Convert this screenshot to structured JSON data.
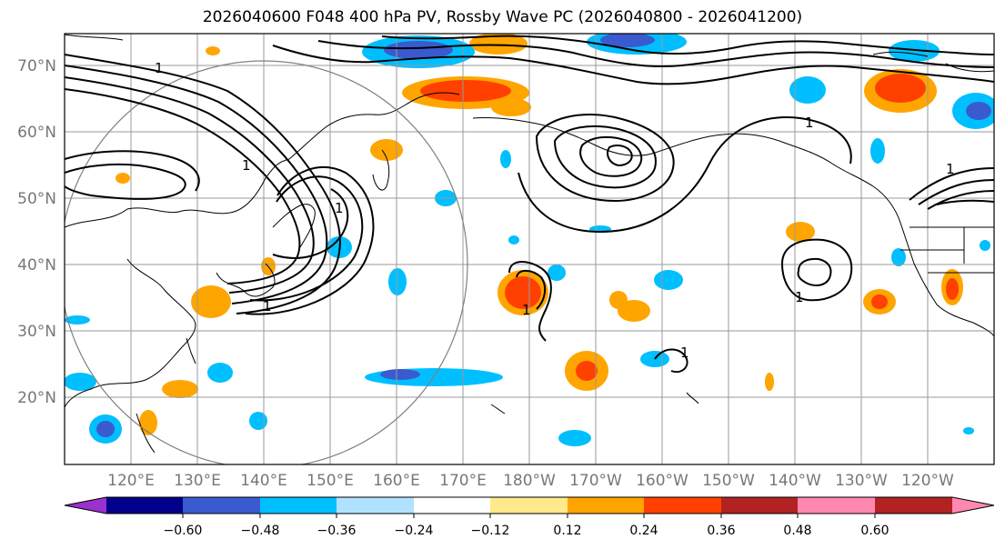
{
  "title": "2026040600 F048 400 hPa PV, Rossby Wave PC (2026040800 - 2026041200)",
  "map": {
    "lat_labels": [
      "70°N",
      "60°N",
      "50°N",
      "40°N",
      "30°N",
      "20°N"
    ],
    "lon_labels": [
      "120°E",
      "130°E",
      "140°E",
      "150°E",
      "160°E",
      "170°E",
      "180°W",
      "170°W",
      "160°W",
      "150°W",
      "140°W",
      "130°W",
      "120°W"
    ],
    "contour_label": "1"
  },
  "colorbar": {
    "colors": [
      "#9932cc",
      "#00008b",
      "#3a5bcf",
      "#00bfff",
      "#b0e2ff",
      "#ffffff",
      "#ffe98a",
      "#ffa500",
      "#ff4000",
      "#b22222",
      "#ff88b0"
    ],
    "ticks": [
      "−0.60",
      "−0.48",
      "−0.36",
      "−0.24",
      "−0.12",
      "0.12",
      "0.24",
      "0.36",
      "0.48",
      "0.60"
    ]
  }
}
